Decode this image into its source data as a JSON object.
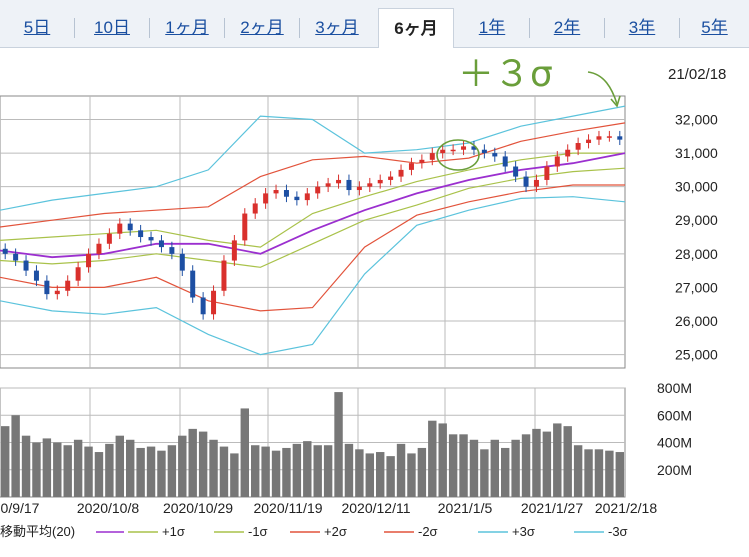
{
  "tabs": [
    {
      "label": "5日",
      "active": false
    },
    {
      "label": "10日",
      "active": false
    },
    {
      "label": "1ヶ月",
      "active": false
    },
    {
      "label": "2ヶ月",
      "active": false
    },
    {
      "label": "3ヶ月",
      "active": false
    },
    {
      "label": "6ヶ月",
      "active": true
    },
    {
      "label": "1年",
      "active": false
    },
    {
      "label": "2年",
      "active": false
    },
    {
      "label": "3年",
      "active": false
    },
    {
      "label": "5年",
      "active": false
    }
  ],
  "annotation": {
    "text": "＋３σ",
    "color": "#6a9e3a"
  },
  "chart_date": "21/02/18",
  "chart_data": [
    {
      "type": "candlestick",
      "y_ticks": [
        "32,000",
        "31,000",
        "30,000",
        "29,000",
        "28,000",
        "27,000",
        "26,000",
        "25,000"
      ],
      "y_tick_values": [
        32000,
        31000,
        30000,
        29000,
        28000,
        27000,
        26000,
        25000
      ],
      "ylim": [
        24600,
        32700
      ],
      "colors": {
        "up": "#d9302c",
        "down": "#1d4fa3",
        "ma": "#9b2fcf",
        "s1": "#a9c24a",
        "s2": "#e2533b",
        "s3": "#5bc3dc"
      },
      "series": [
        {
          "name": "+1σ",
          "color": "#a9c24a",
          "x": [
            0,
            10,
            20,
            30,
            40,
            50,
            60,
            70,
            80,
            90,
            100,
            110,
            120
          ],
          "y": [
            28400,
            28500,
            28600,
            28700,
            28400,
            28200,
            29200,
            29700,
            30150,
            30500,
            30800,
            31000,
            31000
          ]
        },
        {
          "name": "-1σ",
          "color": "#a9c24a",
          "x": [
            0,
            10,
            20,
            30,
            40,
            50,
            60,
            70,
            80,
            90,
            100,
            110,
            120
          ],
          "y": [
            27800,
            27700,
            27800,
            28000,
            27800,
            27600,
            28300,
            29000,
            29450,
            29950,
            30250,
            30450,
            30550
          ]
        },
        {
          "name": "+2σ",
          "color": "#e2533b",
          "x": [
            0,
            10,
            20,
            30,
            40,
            50,
            60,
            70,
            80,
            90,
            100,
            110,
            120
          ],
          "y": [
            28800,
            29000,
            29200,
            29300,
            29400,
            30300,
            30800,
            30900,
            30700,
            30850,
            31350,
            31650,
            31900
          ]
        },
        {
          "name": "-2σ",
          "color": "#e2533b",
          "x": [
            0,
            10,
            20,
            30,
            40,
            50,
            60,
            70,
            80,
            90,
            100,
            110,
            120
          ],
          "y": [
            27300,
            27000,
            27000,
            27300,
            26600,
            26300,
            26400,
            28200,
            29150,
            29550,
            29850,
            30050,
            30050
          ]
        },
        {
          "name": "+3σ",
          "color": "#5bc3dc",
          "x": [
            0,
            10,
            20,
            30,
            40,
            50,
            60,
            70,
            80,
            90,
            100,
            110,
            120
          ],
          "y": [
            29300,
            29600,
            29800,
            30000,
            30500,
            32100,
            32000,
            31000,
            31100,
            31300,
            31800,
            32100,
            32400
          ]
        },
        {
          "name": "-3σ",
          "color": "#5bc3dc",
          "x": [
            0,
            10,
            20,
            30,
            40,
            50,
            60,
            70,
            80,
            90,
            100,
            110,
            120
          ],
          "y": [
            26600,
            26300,
            26200,
            26400,
            25600,
            25000,
            25300,
            27400,
            28850,
            29300,
            29650,
            29700,
            29550
          ]
        },
        {
          "name": "移動平均(20)",
          "color": "#9b2fcf",
          "x": [
            0,
            10,
            20,
            30,
            40,
            50,
            60,
            70,
            80,
            90,
            100,
            110,
            120
          ],
          "y": [
            28100,
            27900,
            28000,
            28300,
            28300,
            28000,
            28700,
            29300,
            29800,
            30200,
            30500,
            30700,
            31000
          ]
        }
      ],
      "candles": {
        "close": [
          28000,
          27800,
          27500,
          27200,
          26800,
          26900,
          27200,
          27600,
          28000,
          28300,
          28600,
          28900,
          28700,
          28500,
          28400,
          28200,
          28000,
          27500,
          26700,
          26200,
          26900,
          27800,
          28400,
          29200,
          29500,
          29800,
          29900,
          29700,
          29600,
          29800,
          30000,
          30100,
          30200,
          29900,
          30000,
          30100,
          30200,
          30300,
          30500,
          30700,
          30800,
          31000,
          31100,
          31100,
          31200,
          31100,
          31000,
          30900,
          30600,
          30300,
          30000,
          30200,
          30600,
          30900,
          31100,
          31300,
          31400,
          31500,
          31500,
          31400
        ]
      },
      "dates": [
        "0/9/17",
        "2020/10/8",
        "2020/10/29",
        "2020/11/19",
        "2020/12/11",
        "2021/1/5",
        "2021/1/27",
        "2021/2/18"
      ]
    },
    {
      "type": "bar",
      "name": "volume",
      "y_ticks": [
        "800M",
        "600M",
        "400M",
        "200M"
      ],
      "y_tick_values": [
        800,
        600,
        400,
        200
      ],
      "ylim": [
        0,
        800
      ],
      "values": [
        520,
        600,
        450,
        400,
        430,
        400,
        380,
        420,
        370,
        330,
        390,
        450,
        420,
        360,
        370,
        340,
        380,
        450,
        500,
        480,
        420,
        370,
        320,
        650,
        380,
        370,
        340,
        360,
        390,
        410,
        380,
        380,
        770,
        390,
        350,
        320,
        330,
        300,
        390,
        320,
        360,
        560,
        540,
        460,
        460,
        420,
        350,
        420,
        360,
        420,
        460,
        500,
        480,
        540,
        520,
        380,
        350,
        350,
        340,
        330
      ]
    }
  ],
  "legend": [
    {
      "label": "移動平均(20)",
      "color": "#9b2fcf"
    },
    {
      "label": "+1σ",
      "color": "#a9c24a"
    },
    {
      "label": "-1σ",
      "color": "#a9c24a"
    },
    {
      "label": "+2σ",
      "color": "#e2533b"
    },
    {
      "label": "-2σ",
      "color": "#e2533b"
    },
    {
      "label": "+3σ",
      "color": "#5bc3dc"
    },
    {
      "label": "-3σ",
      "color": "#5bc3dc"
    }
  ]
}
